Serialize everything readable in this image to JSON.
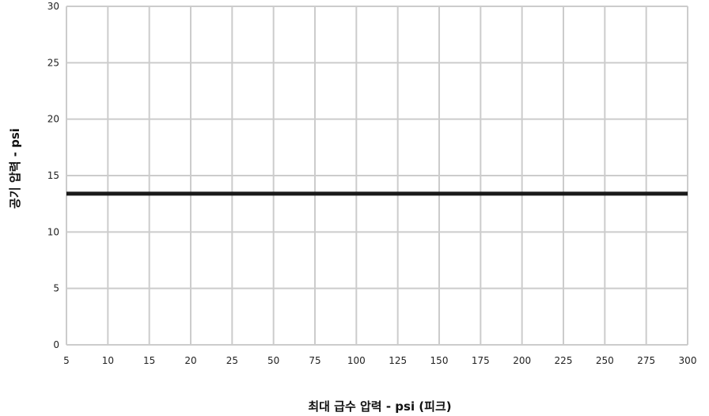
{
  "chart_data": {
    "type": "line",
    "xlabel": "최대 급수 압력  -  psi (피크)",
    "ylabel": "공기 압력  -  psi",
    "x_ticks": [
      "5",
      "10",
      "15",
      "20",
      "25",
      "50",
      "75",
      "100",
      "125",
      "150",
      "175",
      "200",
      "225",
      "250",
      "275",
      "300"
    ],
    "y_ticks": [
      "0",
      "5",
      "10",
      "15",
      "20",
      "25",
      "30"
    ],
    "ylim": [
      0,
      30
    ],
    "grid": true,
    "series": [
      {
        "x": [
          5,
          300
        ],
        "y": [
          13.4,
          13.4
        ],
        "color": "#1a1a1a"
      }
    ]
  }
}
